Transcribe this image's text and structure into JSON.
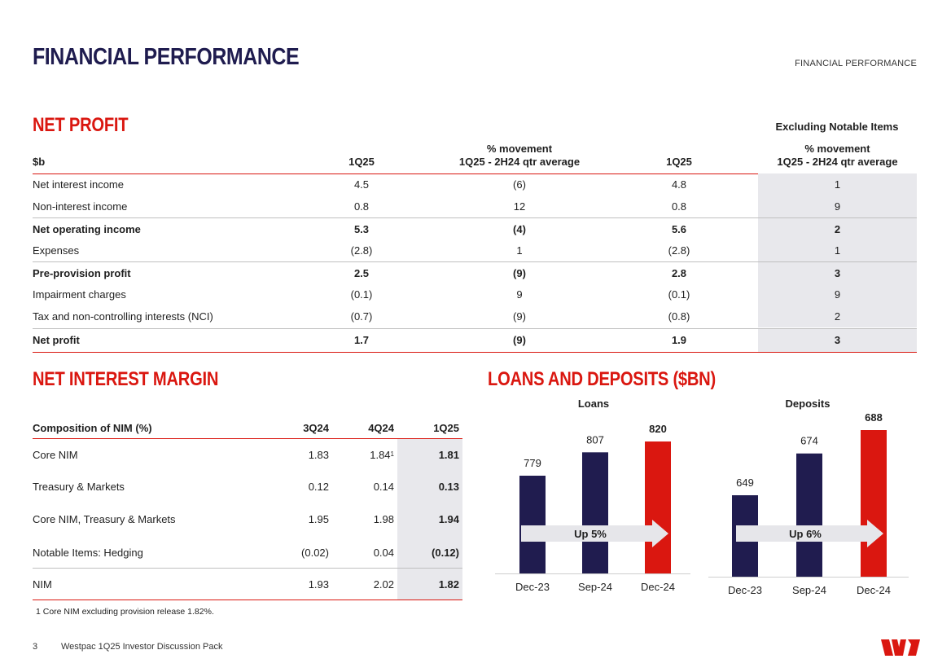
{
  "header": {
    "title": "FINANCIAL PERFORMANCE",
    "section_label": "FINANCIAL PERFORMANCE"
  },
  "net_profit": {
    "heading": "NET PROFIT",
    "excluding_label": "Excluding Notable Items",
    "columns": {
      "label": "$b",
      "q": "1Q25",
      "mov": [
        "% movement",
        "1Q25 - 2H24 qtr average"
      ],
      "ex_q": "1Q25",
      "ex_mov": [
        "% movement",
        "1Q25 - 2H24 qtr average"
      ]
    },
    "rows": [
      {
        "label": "Net interest income",
        "q": "4.5",
        "mov": "(6)",
        "ex_q": "4.8",
        "ex_mov": "1",
        "bold": false
      },
      {
        "label": "Non-interest income",
        "q": "0.8",
        "mov": "12",
        "ex_q": "0.8",
        "ex_mov": "9",
        "bold": false
      },
      {
        "label": "Net operating income",
        "q": "5.3",
        "mov": "(4)",
        "ex_q": "5.6",
        "ex_mov": "2",
        "bold": true
      },
      {
        "label": "Expenses",
        "q": "(2.8)",
        "mov": "1",
        "ex_q": "(2.8)",
        "ex_mov": "1",
        "bold": false
      },
      {
        "label": "Pre-provision profit",
        "q": "2.5",
        "mov": "(9)",
        "ex_q": "2.8",
        "ex_mov": "3",
        "bold": true
      },
      {
        "label": "Impairment charges",
        "q": "(0.1)",
        "mov": "9",
        "ex_q": "(0.1)",
        "ex_mov": "9",
        "bold": false
      },
      {
        "label": "Tax and non-controlling interests (NCI)",
        "q": "(0.7)",
        "mov": "(9)",
        "ex_q": "(0.8)",
        "ex_mov": "2",
        "bold": false
      },
      {
        "label": "Net profit",
        "q": "1.7",
        "mov": "(9)",
        "ex_q": "1.9",
        "ex_mov": "3",
        "bold": true
      }
    ]
  },
  "nim": {
    "heading": "NET INTEREST MARGIN",
    "columns": [
      "Composition of NIM (%)",
      "3Q24",
      "4Q24",
      "1Q25"
    ],
    "rows": [
      {
        "label": "Core NIM",
        "v1": "1.83",
        "v2": "1.84",
        "v2_sup": "1",
        "v3": "1.81"
      },
      {
        "label": "Treasury & Markets",
        "v1": "0.12",
        "v2": "0.14",
        "v2_sup": "",
        "v3": "0.13"
      },
      {
        "label": "Core NIM, Treasury & Markets",
        "v1": "1.95",
        "v2": "1.98",
        "v2_sup": "",
        "v3": "1.94"
      },
      {
        "label": "Notable Items: Hedging",
        "v1": "(0.02)",
        "v2": "0.04",
        "v2_sup": "",
        "v3": "(0.12)"
      },
      {
        "label": "NIM",
        "v1": "1.93",
        "v2": "2.02",
        "v2_sup": "",
        "v3": "1.82"
      }
    ],
    "footnote": "1 Core NIM excluding provision release 1.82%."
  },
  "loans_deposits": {
    "heading": "LOANS AND DEPOSITS ($BN)"
  },
  "chart_data": [
    {
      "type": "bar",
      "title": "Loans",
      "categories": [
        "Dec-23",
        "Sep-24",
        "Dec-24"
      ],
      "values": [
        779,
        807,
        820
      ],
      "colors": [
        "#201c4f",
        "#201c4f",
        "#da1710"
      ],
      "annotation": "Up 5%"
    },
    {
      "type": "bar",
      "title": "Deposits",
      "categories": [
        "Dec-23",
        "Sep-24",
        "Dec-24"
      ],
      "values": [
        649,
        674,
        688
      ],
      "colors": [
        "#201c4f",
        "#201c4f",
        "#da1710"
      ],
      "annotation": "Up 6%"
    }
  ],
  "footer": {
    "page_number": "3",
    "doc_title": "Westpac 1Q25 Investor Discussion Pack",
    "logo_alt": "Westpac logo"
  },
  "colors": {
    "brand_red": "#da1710",
    "brand_navy": "#201c4f",
    "shade": "#e8e8ec"
  }
}
